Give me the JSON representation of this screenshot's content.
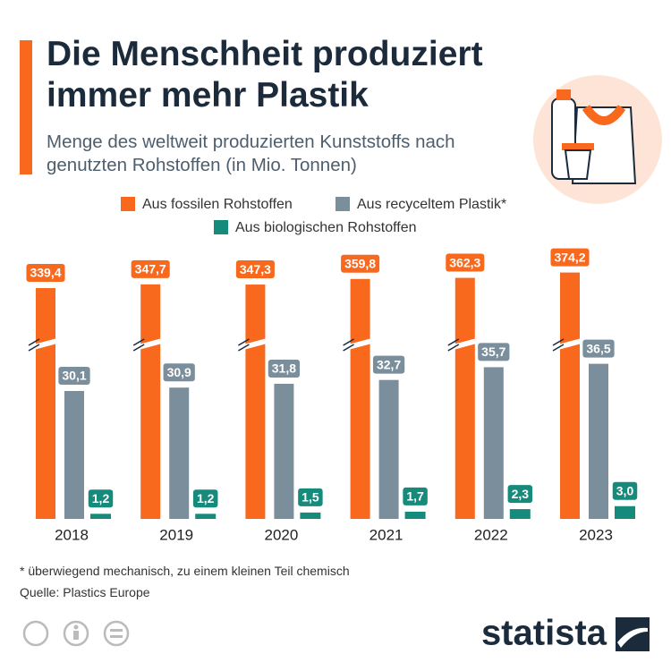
{
  "chart_data": {
    "type": "bar",
    "title": "Die Menschheit produziert immer mehr Plastik",
    "subtitle": "Menge des weltweit produzierten Kunststoffs nach genutzten Rohstoffen (in Mio. Tonnen)",
    "categories": [
      "2018",
      "2019",
      "2020",
      "2021",
      "2022",
      "2023"
    ],
    "series": [
      {
        "name": "Aus fossilen Rohstoffen",
        "color": "#f8691e",
        "values": [
          339.4,
          347.7,
          347.3,
          359.8,
          362.3,
          374.2
        ],
        "value_labels": [
          "339,4",
          "347,7",
          "347,3",
          "359,8",
          "362,3",
          "374,2"
        ]
      },
      {
        "name": "Aus recyceltem Plastik*",
        "color": "#7b8e9c",
        "values": [
          30.1,
          30.9,
          31.8,
          32.7,
          35.7,
          36.5
        ],
        "value_labels": [
          "30,1",
          "30,9",
          "31,8",
          "32,7",
          "35,7",
          "36,5"
        ]
      },
      {
        "name": "Aus biologischen Rohstoffen",
        "color": "#168a7b",
        "values": [
          1.2,
          1.2,
          1.5,
          1.7,
          2.3,
          3.0
        ],
        "value_labels": [
          "1,2",
          "1,2",
          "1,5",
          "1,7",
          "2,3",
          "3,0"
        ]
      }
    ],
    "axis_break": true,
    "footnote": "* überwiegend mechanisch, zu einem kleinen Teil chemisch",
    "source": "Quelle: Plastics Europe",
    "logo": "statista"
  }
}
